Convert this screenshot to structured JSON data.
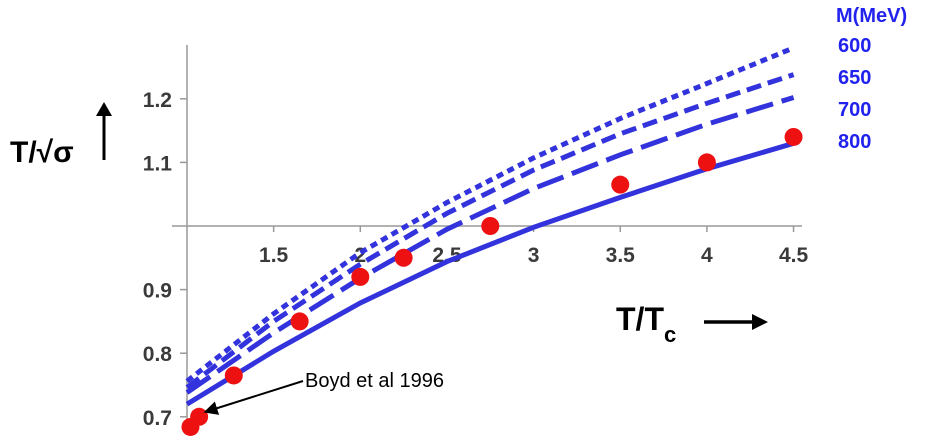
{
  "chart_data": {
    "type": "line",
    "xlabel": "T/T",
    "xlabel_sub": "c",
    "ylabel": "T/√σ",
    "xlim": [
      1.0,
      4.6
    ],
    "ylim": [
      0.69,
      1.3
    ],
    "x_ticks": [
      {
        "v": 1.5,
        "label": "1.5"
      },
      {
        "v": 2.0,
        "label": "2"
      },
      {
        "v": 2.5,
        "label": "2.5"
      },
      {
        "v": 3.0,
        "label": "3"
      },
      {
        "v": 3.5,
        "label": "3.5"
      },
      {
        "v": 4.0,
        "label": "4"
      },
      {
        "v": 4.5,
        "label": "4.5"
      }
    ],
    "y_ticks": [
      {
        "v": 0.7,
        "label": "0.7"
      },
      {
        "v": 0.8,
        "label": "0.8"
      },
      {
        "v": 0.9,
        "label": "0.9"
      },
      {
        "v": 1.1,
        "label": "1.1"
      },
      {
        "v": 1.2,
        "label": "1.2"
      }
    ],
    "legend_title": "M(MeV)",
    "line_color": "#3333dd",
    "legend_color": "#2222ee",
    "marker_color": "#ee1111",
    "series": [
      {
        "name": "600",
        "style": "short-dash",
        "x": [
          1.0,
          1.5,
          2.0,
          2.5,
          3.0,
          3.5,
          4.0,
          4.5
        ],
        "y": [
          0.756,
          0.862,
          0.958,
          1.037,
          1.107,
          1.169,
          1.224,
          1.28
        ]
      },
      {
        "name": "650",
        "style": "medium-dash",
        "x": [
          1.0,
          1.5,
          2.0,
          2.5,
          3.0,
          3.5,
          4.0,
          4.5
        ],
        "y": [
          0.746,
          0.85,
          0.94,
          1.02,
          1.088,
          1.145,
          1.193,
          1.238
        ]
      },
      {
        "name": "700",
        "style": "long-dash",
        "x": [
          1.0,
          1.5,
          2.0,
          2.5,
          3.0,
          3.5,
          4.0,
          4.5
        ],
        "y": [
          0.738,
          0.832,
          0.918,
          0.995,
          1.059,
          1.112,
          1.16,
          1.202
        ]
      },
      {
        "name": "800",
        "style": "solid",
        "x": [
          1.0,
          1.5,
          2.0,
          2.5,
          3.0,
          3.5,
          4.0,
          4.5
        ],
        "y": [
          0.72,
          0.803,
          0.879,
          0.944,
          0.998,
          1.045,
          1.09,
          1.13
        ]
      }
    ],
    "points": {
      "name": "Boyd et al 1996",
      "x": [
        1.02,
        1.07,
        1.27,
        1.65,
        2.0,
        2.25,
        2.75,
        3.5,
        4.0,
        4.5
      ],
      "y": [
        0.684,
        0.7,
        0.765,
        0.85,
        0.92,
        0.95,
        1.0,
        1.065,
        1.1,
        1.14
      ]
    },
    "annotations": [
      {
        "text": "Boyd et al 1996",
        "arrow_to": {
          "x": 1.07,
          "y": 0.7
        }
      }
    ]
  }
}
